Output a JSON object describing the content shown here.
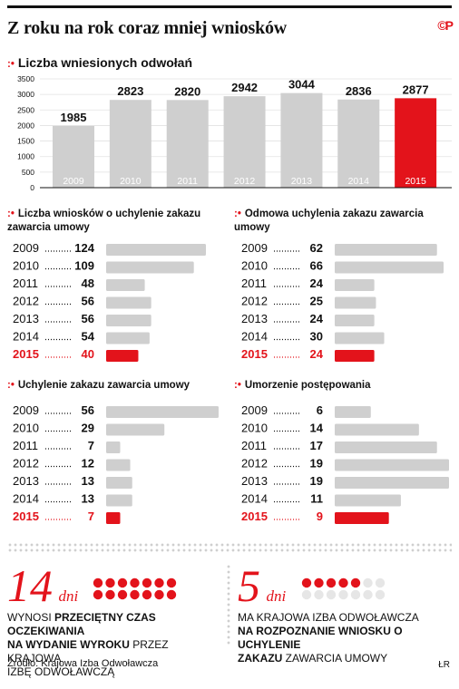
{
  "header": {
    "title": "Z roku na rok coraz mniej wniosków",
    "logo": "©P"
  },
  "colors": {
    "highlight": "#e3131b",
    "bar": "#cfcfcf",
    "text": "#111111"
  },
  "chart_data": [
    {
      "type": "bar",
      "title": "Liczba wniesionych odwołań",
      "categories": [
        "2009",
        "2010",
        "2011",
        "2012",
        "2013",
        "2014",
        "2015"
      ],
      "values": [
        1985,
        2823,
        2820,
        2942,
        3044,
        2836,
        2877
      ],
      "highlight": "2015",
      "yticks": [
        0,
        500,
        1000,
        1500,
        2000,
        2500,
        3000,
        3500
      ],
      "ylim": [
        0,
        3500
      ]
    },
    {
      "type": "bar",
      "orientation": "horizontal",
      "title": "Liczba wniosków o uchylenie zakazu zawarcia umowy",
      "categories": [
        "2009",
        "2010",
        "2011",
        "2012",
        "2013",
        "2014",
        "2015"
      ],
      "values": [
        124,
        109,
        48,
        56,
        56,
        54,
        40
      ],
      "highlight": "2015"
    },
    {
      "type": "bar",
      "orientation": "horizontal",
      "title": "Odmowa uchylenia zakazu zawarcia umowy",
      "categories": [
        "2009",
        "2010",
        "2011",
        "2012",
        "2013",
        "2014",
        "2015"
      ],
      "values": [
        62,
        66,
        24,
        25,
        24,
        30,
        24
      ],
      "highlight": "2015"
    },
    {
      "type": "bar",
      "orientation": "horizontal",
      "title": "Uchylenie zakazu zawarcia umowy",
      "categories": [
        "2009",
        "2010",
        "2011",
        "2012",
        "2013",
        "2014",
        "2015"
      ],
      "values": [
        56,
        29,
        7,
        12,
        13,
        13,
        7
      ],
      "highlight": "2015"
    },
    {
      "type": "bar",
      "orientation": "horizontal",
      "title": "Umorzenie postępowania",
      "categories": [
        "2009",
        "2010",
        "2011",
        "2012",
        "2013",
        "2014",
        "2015"
      ],
      "values": [
        6,
        14,
        17,
        19,
        19,
        11,
        9
      ],
      "highlight": "2015"
    }
  ],
  "stats": [
    {
      "number": "14",
      "unit": "dni",
      "filled": 14,
      "total": 14,
      "desc_1": "WYNOSI ",
      "desc_2": "PRZECIĘTNY CZAS OCZEKIWANIA",
      "desc_3": "NA WYDANIE WYROKU",
      "desc_4": " PRZEZ KRAJOWĄ",
      "desc_5": "IZBĘ ODWOŁAWCZĄ"
    },
    {
      "number": "5",
      "unit": "dni",
      "filled": 5,
      "total": 14,
      "desc_1": "MA KRAJOWA IZBA ODWOŁAWCZA",
      "desc_2": "NA ROZPOZNANIE WNIOSKU O UCHYLENIE",
      "desc_3": "ZAKAZU",
      "desc_4": " ZAWARCIA UMOWY"
    }
  ],
  "footer": {
    "source": "Źródło: Krajowa Izba Odwoławcza",
    "credit": "ŁR"
  }
}
